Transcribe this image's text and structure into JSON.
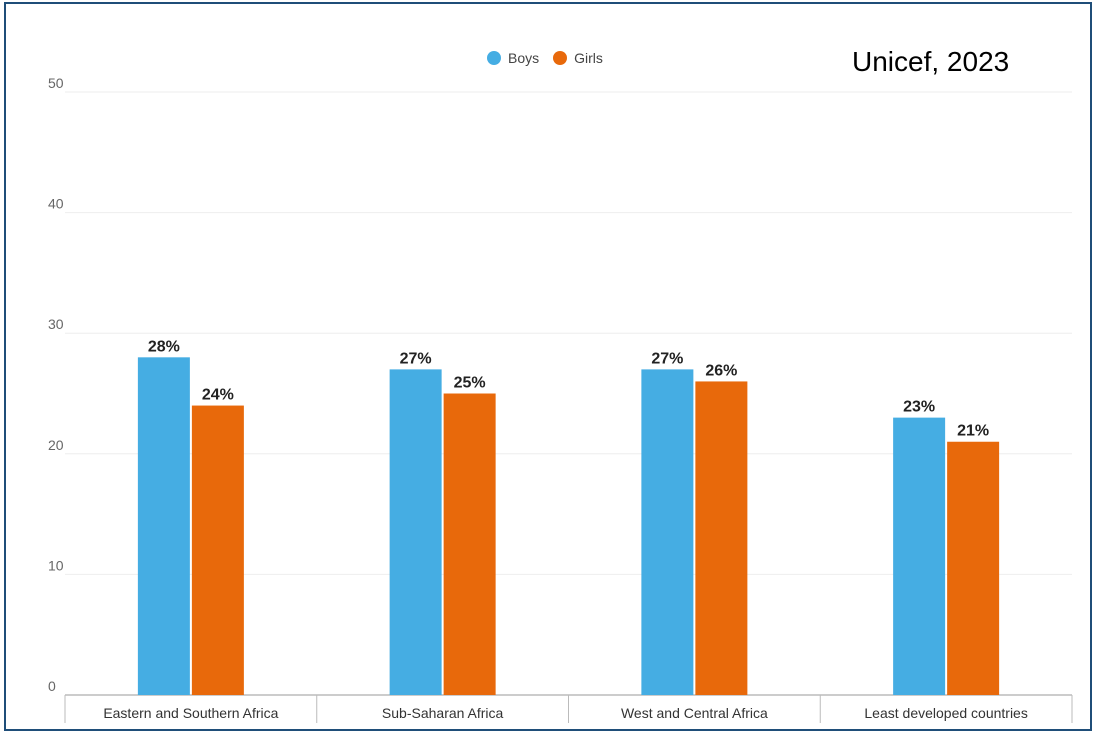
{
  "source_note": "Unicef, 2023",
  "colors": {
    "boys": "#45ade3",
    "girls": "#e8690b",
    "gridline": "#eeeeee",
    "axis": "#999999"
  },
  "chart_data": {
    "type": "bar",
    "title": "",
    "xlabel": "",
    "ylabel": "",
    "ylim": [
      0,
      50
    ],
    "yticks": [
      0,
      10,
      20,
      30,
      40,
      50
    ],
    "grid": true,
    "legend_position": "top",
    "categories": [
      "Eastern and Southern Africa",
      "Sub-Saharan Africa",
      "West and Central Africa",
      "Least developed countries"
    ],
    "series": [
      {
        "name": "Boys",
        "values": [
          28,
          27,
          27,
          23
        ],
        "labels": [
          "28%",
          "27%",
          "27%",
          "23%"
        ]
      },
      {
        "name": "Girls",
        "values": [
          24,
          25,
          26,
          21
        ],
        "labels": [
          "24%",
          "25%",
          "26%",
          "21%"
        ]
      }
    ]
  }
}
